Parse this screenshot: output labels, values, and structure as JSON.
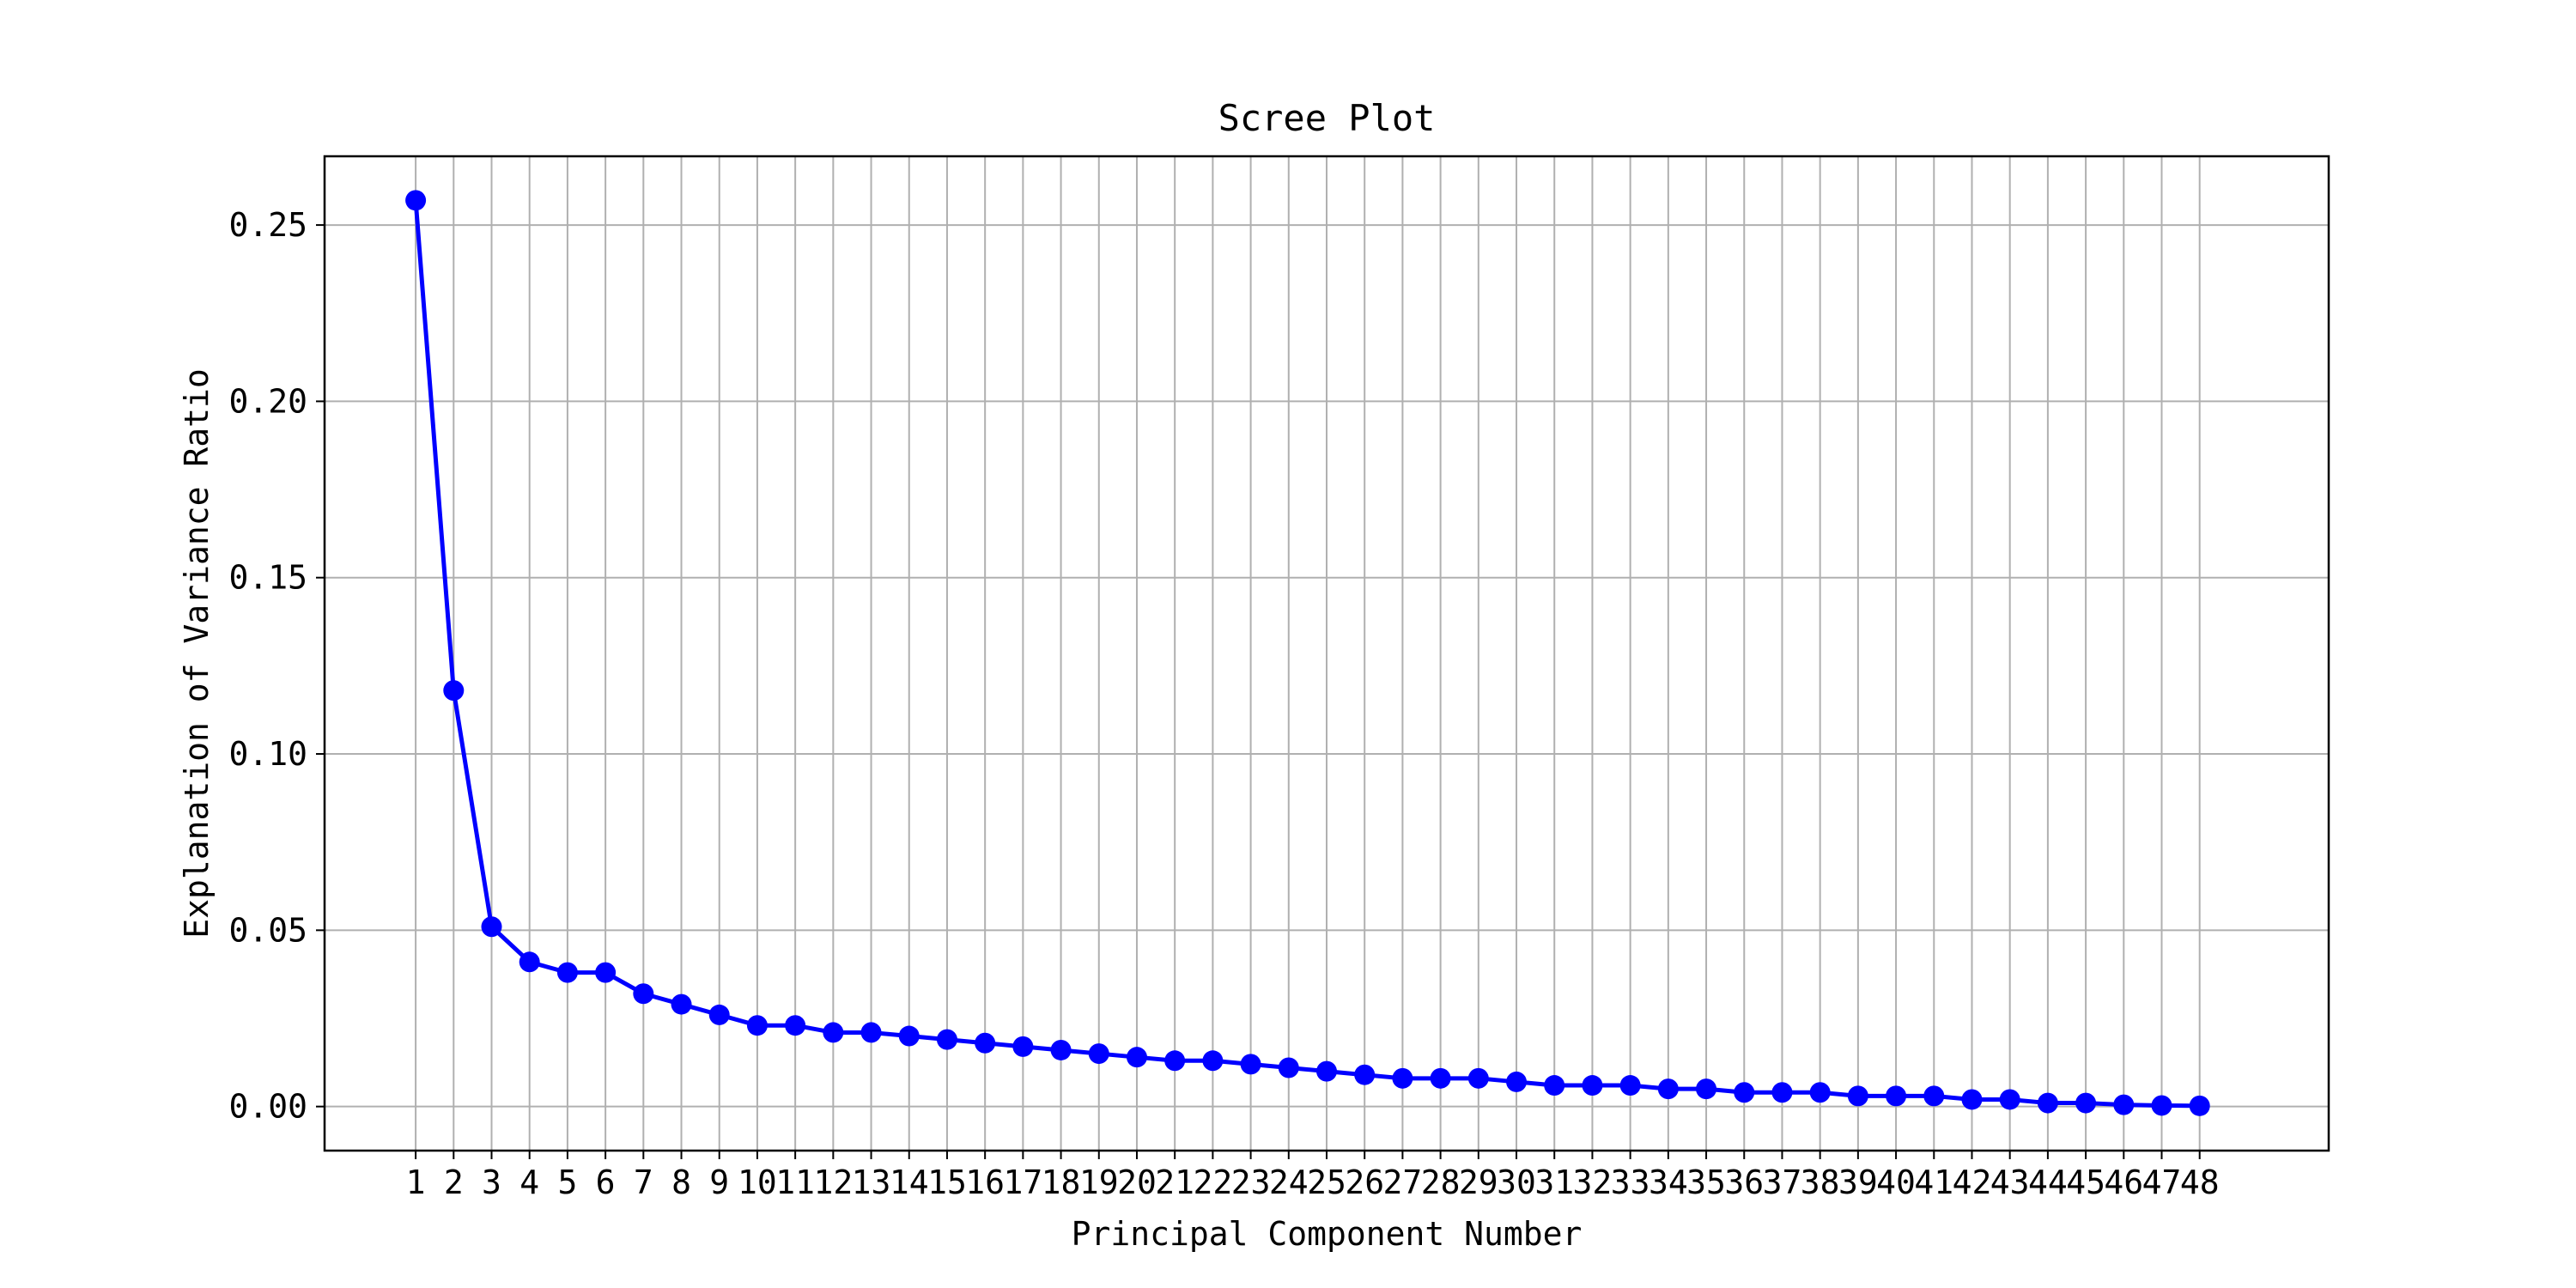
{
  "chart_data": {
    "type": "line",
    "title": "Scree Plot",
    "xlabel": "Principal Component Number",
    "ylabel": "Explanation of Variance Ratio",
    "x": [
      1,
      2,
      3,
      4,
      5,
      6,
      7,
      8,
      9,
      10,
      11,
      12,
      13,
      14,
      15,
      16,
      17,
      18,
      19,
      20,
      21,
      22,
      23,
      24,
      25,
      26,
      27,
      28,
      29,
      30,
      31,
      32,
      33,
      34,
      35,
      36,
      37,
      38,
      39,
      40,
      41,
      42,
      43,
      44,
      45,
      46,
      47,
      48
    ],
    "x_tick_labels": [
      "1",
      "2",
      "3",
      "4",
      "5",
      "6",
      "7",
      "8",
      "9",
      "10",
      "11",
      "12",
      "13",
      "14",
      "15",
      "16",
      "17",
      "18",
      "19",
      "20",
      "21",
      "22",
      "23",
      "24",
      "25",
      "26",
      "27",
      "28",
      "29",
      "30",
      "31",
      "32",
      "33",
      "34",
      "35",
      "36",
      "37",
      "38",
      "39",
      "40",
      "41",
      "42",
      "43",
      "44",
      "45",
      "46",
      "47",
      "48"
    ],
    "xlim": [
      -1.4,
      51.4
    ],
    "ylim": [
      -0.0125,
      0.2695
    ],
    "y_ticks": [
      0.0,
      0.05,
      0.1,
      0.15,
      0.2,
      0.25
    ],
    "y_tick_labels": [
      "0.00",
      "0.05",
      "0.10",
      "0.15",
      "0.20",
      "0.25"
    ],
    "grid": true,
    "series": [
      {
        "color": "#0000ff",
        "marker": "circle",
        "values": [
          0.257,
          0.118,
          0.051,
          0.041,
          0.038,
          0.038,
          0.032,
          0.029,
          0.026,
          0.023,
          0.023,
          0.021,
          0.021,
          0.02,
          0.019,
          0.018,
          0.017,
          0.016,
          0.015,
          0.014,
          0.013,
          0.013,
          0.012,
          0.011,
          0.01,
          0.009,
          0.008,
          0.008,
          0.008,
          0.007,
          0.006,
          0.006,
          0.006,
          0.005,
          0.005,
          0.004,
          0.004,
          0.004,
          0.003,
          0.003,
          0.003,
          0.002,
          0.002,
          0.001,
          0.001,
          0.0005,
          0.0003,
          0.0002
        ]
      }
    ]
  }
}
